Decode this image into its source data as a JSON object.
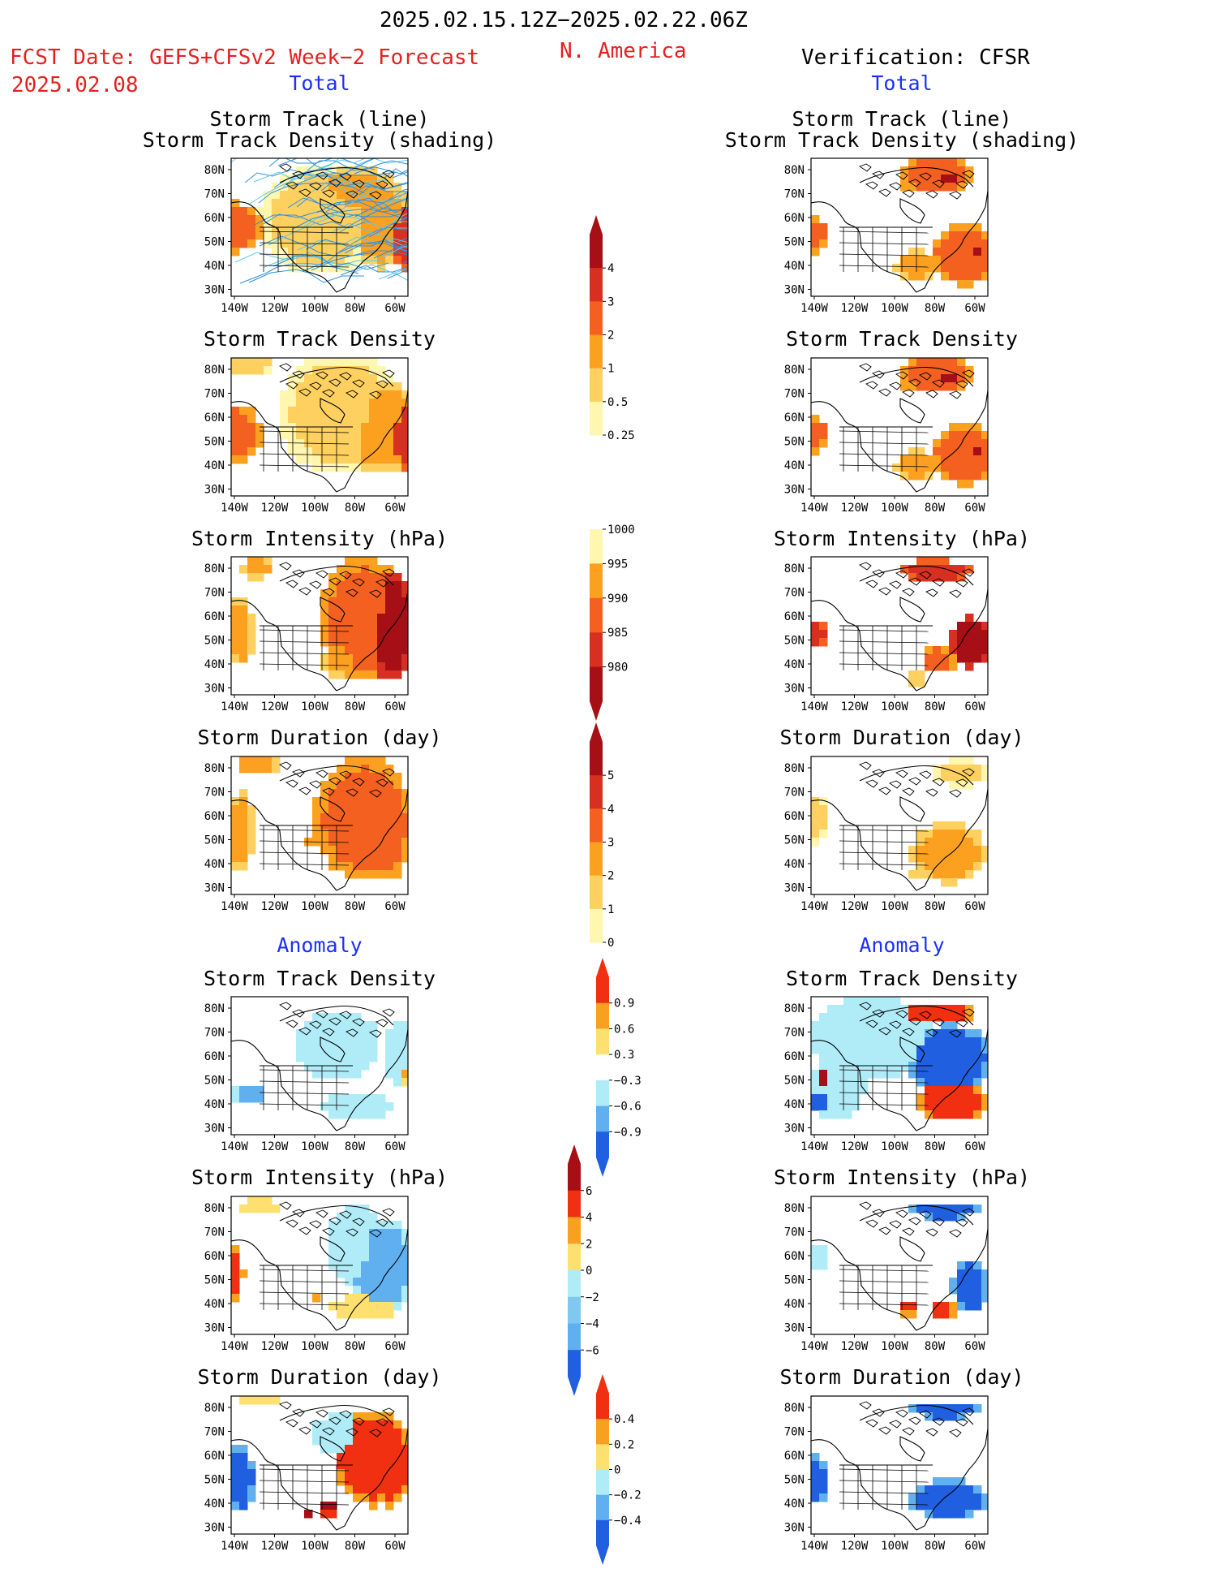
{
  "header": {
    "period": "2025.02.15.12Z−2025.02.22.06Z",
    "fcst_label": "FCST Date: GEFS+CFSv2 Week−2 Forecast",
    "fcst_date": "2025.02.08",
    "region": "N. America",
    "verification": "Verification: CFSR"
  },
  "sections": {
    "total": "Total",
    "anomaly": "Anomaly"
  },
  "axes": {
    "lat_ticks": [
      "80N",
      "70N",
      "60N",
      "50N",
      "40N",
      "30N"
    ],
    "lon_ticks": [
      "140W",
      "120W",
      "100W",
      "80W",
      "60W"
    ]
  },
  "panel_titles": {
    "track_line": "Storm Track (line)",
    "track_shading": "Storm Track Density (shading)",
    "density": "Storm Track Density",
    "intensity": "Storm Intensity (hPa)",
    "duration": "Storm Duration (day)"
  },
  "colorbars": [
    {
      "name": "density-total",
      "labels": [
        "4",
        "3",
        "2",
        "1",
        "0.5",
        "0.25"
      ],
      "colors": [
        "#a50f15",
        "#d73020",
        "#f46020",
        "#fca020",
        "#fdd060",
        "#fff6b0"
      ],
      "extend": "top"
    },
    {
      "name": "intensity-total",
      "labels": [
        "1000",
        "995",
        "990",
        "985",
        "980"
      ],
      "colors": [
        "#fff6b0",
        "#fca020",
        "#f46020",
        "#d73020",
        "#a50f15"
      ],
      "extend": "bottom"
    },
    {
      "name": "duration-total",
      "labels": [
        "5",
        "4",
        "3",
        "2",
        "1",
        "0"
      ],
      "colors": [
        "#a50f15",
        "#d73020",
        "#f46020",
        "#fca020",
        "#fdd060",
        "#fff6b0"
      ],
      "extend": "top"
    },
    {
      "name": "density-anom",
      "labels": [
        "0.9",
        "0.6",
        "0.3",
        "−0.3",
        "−0.6",
        "−0.9"
      ],
      "colors": [
        "#f03010",
        "#f8a020",
        "#fde070",
        "#ffffff",
        "#b0ecf8",
        "#60b0f0",
        "#2060e0"
      ],
      "extend": "both"
    },
    {
      "name": "intensity-anom",
      "labels": [
        "6",
        "4",
        "2",
        "0",
        "−2",
        "−4",
        "−6"
      ],
      "colors": [
        "#a50f15",
        "#f03010",
        "#f8a020",
        "#fde070",
        "#b0ecf8",
        "#80c8f0",
        "#60b0f0",
        "#2060e0"
      ],
      "extend": "both"
    },
    {
      "name": "duration-anom",
      "labels": [
        "0.4",
        "0.2",
        "0",
        "−0.2",
        "−0.4"
      ],
      "colors": [
        "#f03010",
        "#f8a020",
        "#fde070",
        "#b0ecf8",
        "#60b0f0",
        "#2060e0"
      ],
      "extend": "both"
    }
  ],
  "colors": {
    "red_text": "#e62020",
    "blue_text": "#1a2fff",
    "track_line": "#3090e0"
  }
}
